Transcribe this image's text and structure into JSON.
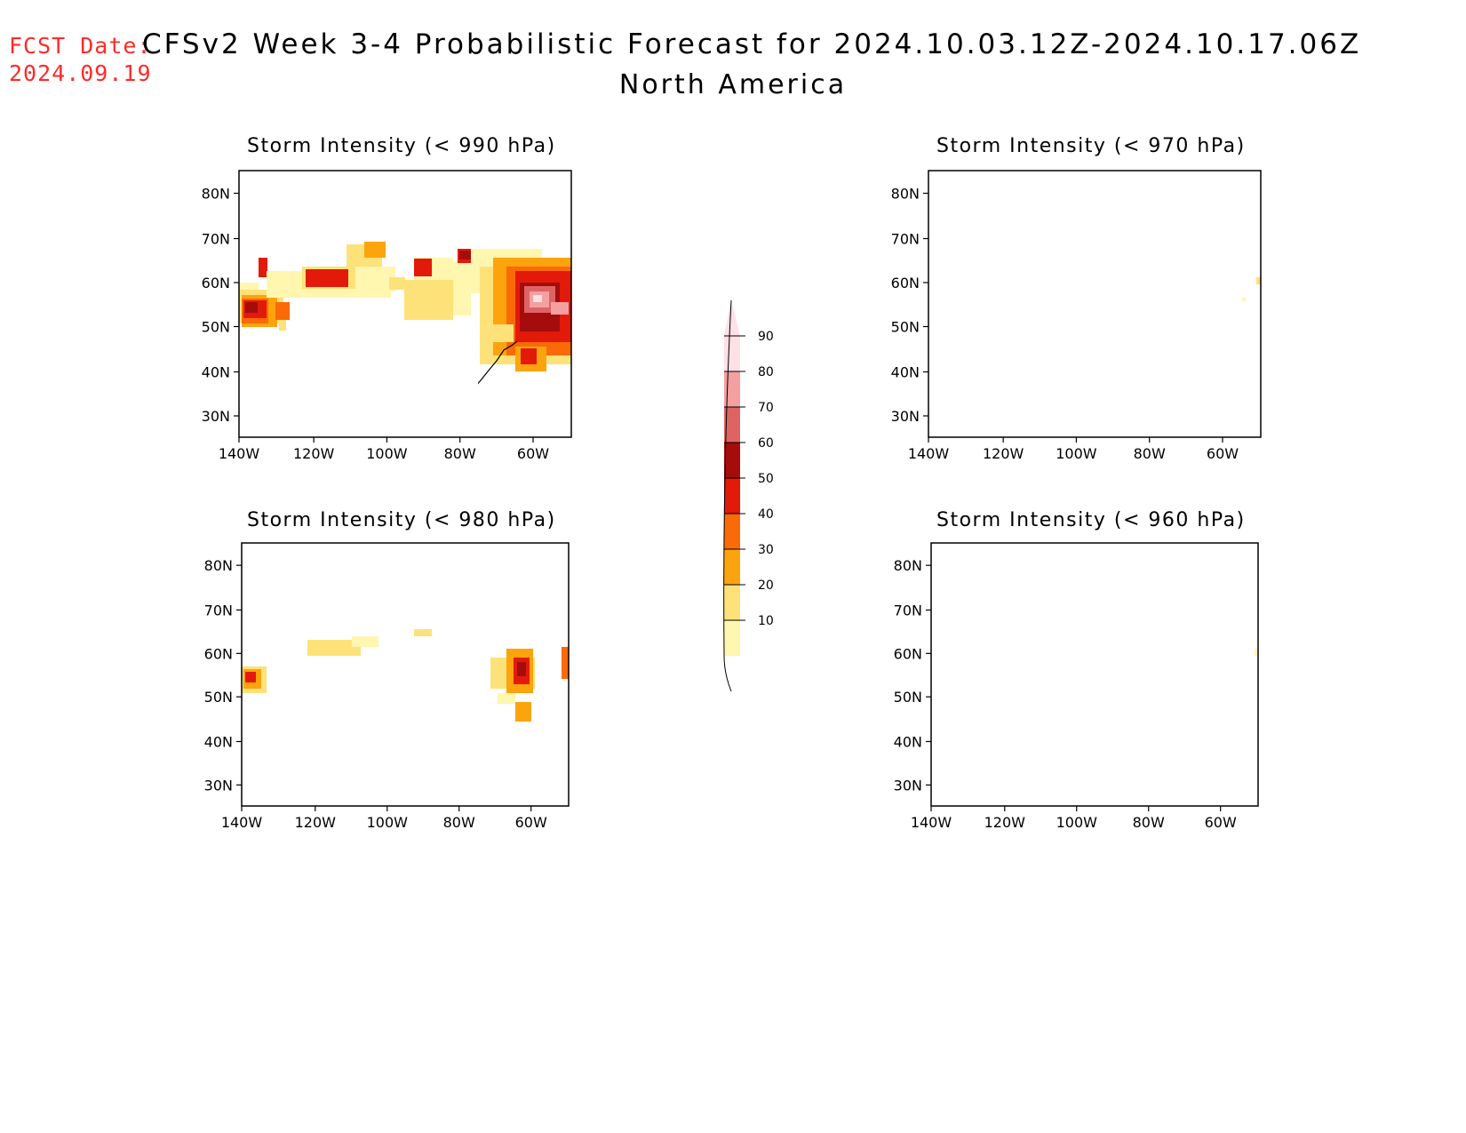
{
  "header": {
    "fcst_date_label": "FCST Date:",
    "fcst_date_value": "2024.09.19",
    "title": "CFSv2 Week 3-4 Probabilistic Forecast for 2024.10.03.12Z-2024.10.17.06Z",
    "subtitle": "North America"
  },
  "axes": {
    "lat_ticks": [
      "80N",
      "70N",
      "60N",
      "50N",
      "40N",
      "30N"
    ],
    "lon_ticks": [
      "140W",
      "120W",
      "100W",
      "80W",
      "60W"
    ]
  },
  "panels": [
    {
      "id": "p990",
      "title": "Storm Intensity (< 990 hPa)"
    },
    {
      "id": "p970",
      "title": "Storm Intensity (< 970 hPa)"
    },
    {
      "id": "p980",
      "title": "Storm Intensity (< 980 hPa)"
    },
    {
      "id": "p960",
      "title": "Storm Intensity (< 960 hPa)"
    }
  ],
  "colorbar": {
    "levels": [
      "10",
      "20",
      "30",
      "40",
      "50",
      "60",
      "70",
      "80",
      "90"
    ],
    "colors": [
      "#fff6b0",
      "#fde27a",
      "#fca40e",
      "#fa6a06",
      "#e31a0a",
      "#a50d0d",
      "#de6464",
      "#f4a0a0",
      "#ffe0e6"
    ]
  }
}
